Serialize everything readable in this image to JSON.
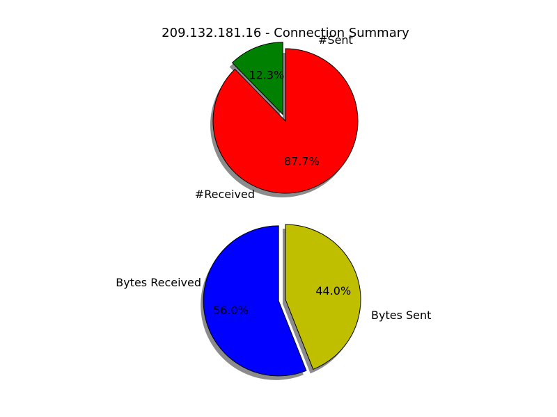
{
  "title": "209.132.181.16 - Connection Summary",
  "chart_data": [
    {
      "type": "pie",
      "slices": [
        {
          "label": "#Sent",
          "value": 12.3,
          "color": "#008000",
          "exploded": true
        },
        {
          "label": "#Received",
          "value": 87.7,
          "color": "#ff0000",
          "exploded": false
        }
      ],
      "autopct": [
        "12.3%",
        "87.7%"
      ],
      "shadow": true
    },
    {
      "type": "pie",
      "slices": [
        {
          "label": "Bytes Sent",
          "value": 56.0,
          "color": "#0000ff",
          "exploded": true
        },
        {
          "label": "Bytes Received",
          "value": 44.0,
          "color": "#bfbf00",
          "exploded": false
        }
      ],
      "autopct": [
        "56.0%",
        "44.0%"
      ],
      "shadow": true
    }
  ]
}
